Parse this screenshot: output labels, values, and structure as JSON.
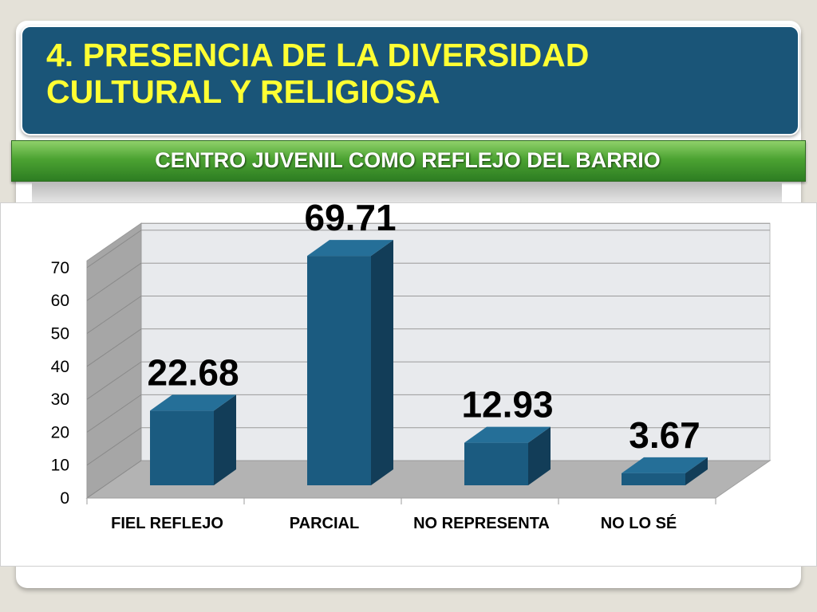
{
  "slide": {
    "title": "4. PRESENCIA DE LA DIVERSIDAD CULTURAL Y RELIGIOSA",
    "subtitle": "CENTRO JUVENIL COMO REFLEJO DEL BARRIO"
  },
  "colors": {
    "bar_front": "#1b5b80",
    "bar_top": "#256f98",
    "bar_side": "#123d58",
    "title_bg": "#1a5578",
    "title_text": "#ffff33",
    "subtitle_bg": "#4ca332"
  },
  "chart_data": {
    "type": "bar",
    "style": "3d",
    "categories": [
      "FIEL REFLEJO",
      "PARCIAL",
      "NO REPRESENTA",
      "NO LO SÉ"
    ],
    "values": [
      22.68,
      69.71,
      12.93,
      3.67
    ],
    "data_labels": [
      "22.68",
      "69.71",
      "12.93",
      "3.67"
    ],
    "yticks": [
      0,
      10,
      20,
      30,
      40,
      50,
      60,
      70
    ],
    "ylim": [
      0,
      70
    ],
    "grid": true,
    "legend": "none"
  }
}
